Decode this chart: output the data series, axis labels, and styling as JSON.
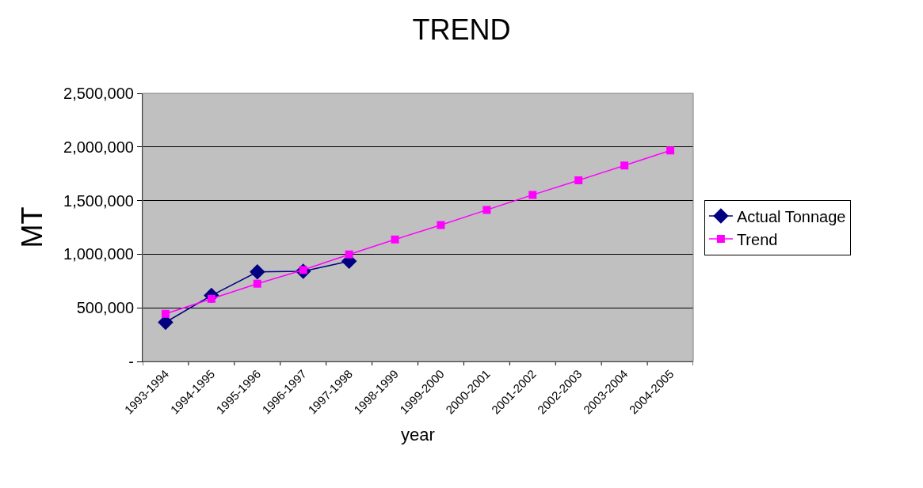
{
  "chart_data": {
    "type": "line",
    "title": "TREND",
    "xlabel": "year",
    "ylabel": "MT",
    "categories": [
      "1993-1994",
      "1994-1995",
      "1995-1996",
      "1996-1997",
      "1997-1998",
      "1998-1999",
      "1999-2000",
      "2000-2001",
      "2001-2002",
      "2002-2003",
      "2003-2004",
      "2004-2005"
    ],
    "series": [
      {
        "name": "Actual Tonnage",
        "color": "#000080",
        "marker": "diamond",
        "values": [
          365000,
          615000,
          835000,
          840000,
          935000,
          null,
          null,
          null,
          null,
          null,
          null,
          null
        ]
      },
      {
        "name": "Trend",
        "color": "#ff00ff",
        "marker": "square",
        "values": [
          444000,
          584000,
          725000,
          853000,
          998000,
          1137000,
          1272000,
          1413000,
          1553000,
          1689000,
          1827000,
          1967000
        ]
      }
    ],
    "ylim": [
      0,
      2500000
    ],
    "yticks": [
      {
        "value": 0,
        "label": "-"
      },
      {
        "value": 500000,
        "label": "500,000"
      },
      {
        "value": 1000000,
        "label": "1,000,000"
      },
      {
        "value": 1500000,
        "label": "1,500,000"
      },
      {
        "value": 2000000,
        "label": "2,000,000"
      },
      {
        "value": 2500000,
        "label": "2,500,000"
      }
    ],
    "grid": "y",
    "legend": "right",
    "line_style": "solid"
  }
}
